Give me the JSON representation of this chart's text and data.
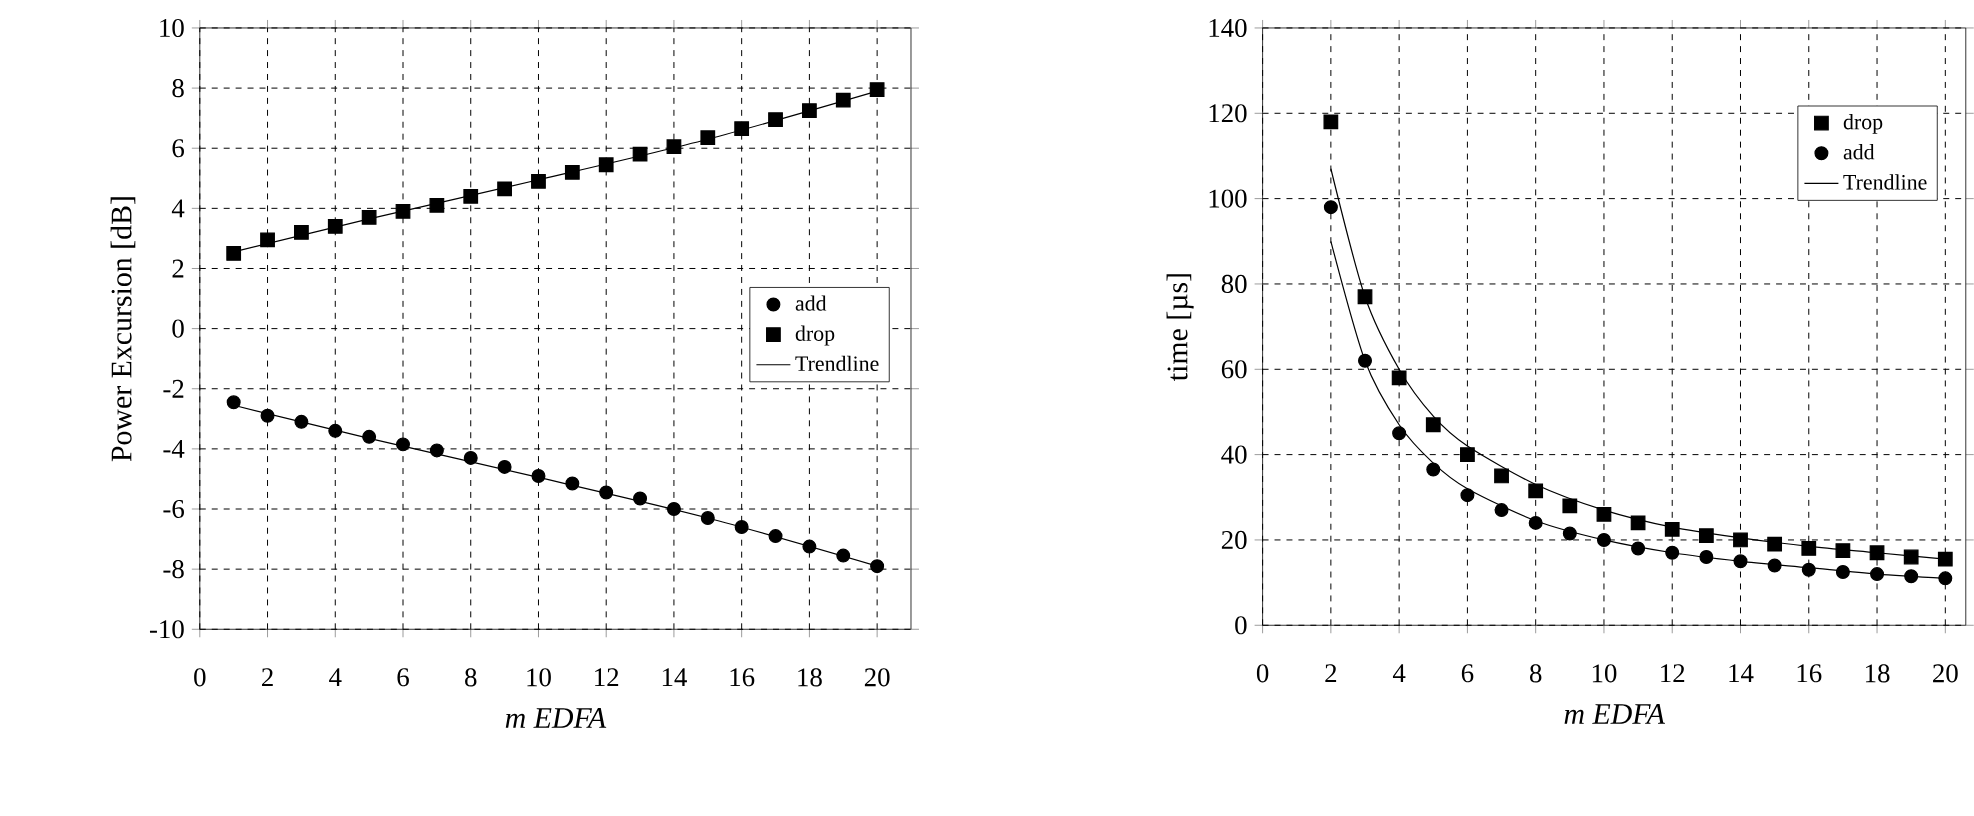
{
  "chart_data": [
    {
      "type": "scatter",
      "xlabel": "m EDFA",
      "ylabel": "Power Excursion [dB]",
      "xlim": [
        0,
        21
      ],
      "ylim": [
        -10,
        10
      ],
      "xticks": [
        0,
        2,
        4,
        6,
        8,
        10,
        12,
        14,
        16,
        18,
        20
      ],
      "yticks": [
        -10,
        -8,
        -6,
        -4,
        -2,
        0,
        2,
        4,
        6,
        8,
        10
      ],
      "grid": true,
      "legend": "right",
      "series": [
        {
          "name": "add",
          "marker": "circle",
          "color": "#000000",
          "x": [
            1,
            2,
            3,
            4,
            5,
            6,
            7,
            8,
            9,
            10,
            11,
            12,
            13,
            14,
            15,
            16,
            17,
            18,
            19,
            20
          ],
          "values": [
            -2.45,
            -2.9,
            -3.1,
            -3.4,
            -3.6,
            -3.85,
            -4.05,
            -4.3,
            -4.6,
            -4.9,
            -5.15,
            -5.45,
            -5.65,
            -6.0,
            -6.3,
            -6.6,
            -6.9,
            -7.25,
            -7.55,
            -7.9
          ]
        },
        {
          "name": "drop",
          "marker": "square",
          "color": "#000000",
          "x": [
            1,
            2,
            3,
            4,
            5,
            6,
            7,
            8,
            9,
            10,
            11,
            12,
            13,
            14,
            15,
            16,
            17,
            18,
            19,
            20
          ],
          "values": [
            2.5,
            2.95,
            3.2,
            3.4,
            3.7,
            3.9,
            4.1,
            4.4,
            4.65,
            4.9,
            5.2,
            5.45,
            5.8,
            6.05,
            6.35,
            6.65,
            6.95,
            7.25,
            7.6,
            7.95
          ]
        },
        {
          "name": "Trendline",
          "type": "line",
          "marker": "none",
          "color": "#000000",
          "x": [
            1,
            5,
            10,
            15,
            20
          ],
          "values": [
            2.55,
            3.65,
            4.95,
            6.3,
            7.9
          ]
        },
        {
          "type": "line",
          "marker": "none",
          "color": "#000000",
          "x": [
            1,
            5,
            10,
            15,
            20
          ],
          "values": [
            -2.55,
            -3.65,
            -4.95,
            -6.3,
            -7.9
          ]
        }
      ]
    },
    {
      "type": "scatter",
      "xlabel": "m EDFA",
      "ylabel": "time [µs]",
      "xlim": [
        0,
        20.6
      ],
      "ylim": [
        0,
        140
      ],
      "xticks": [
        0,
        2,
        4,
        6,
        8,
        10,
        12,
        14,
        16,
        18,
        20
      ],
      "yticks": [
        0,
        20,
        40,
        60,
        80,
        100,
        120,
        140
      ],
      "grid": true,
      "legend": "top right",
      "series": [
        {
          "name": "drop",
          "marker": "square",
          "color": "#000000",
          "x": [
            2,
            3,
            4,
            5,
            6,
            7,
            8,
            9,
            10,
            11,
            12,
            13,
            14,
            15,
            16,
            17,
            18,
            19,
            20
          ],
          "values": [
            118,
            77,
            58,
            47,
            40,
            35,
            31.5,
            28,
            26,
            24,
            22.5,
            21,
            20,
            19,
            18,
            17.5,
            17,
            16,
            15.5
          ]
        },
        {
          "name": "add",
          "marker": "circle",
          "color": "#000000",
          "x": [
            2,
            3,
            4,
            5,
            6,
            7,
            8,
            9,
            10,
            11,
            12,
            13,
            14,
            15,
            16,
            17,
            18,
            19,
            20
          ],
          "values": [
            98,
            62,
            45,
            36.5,
            30.5,
            27,
            24,
            21.5,
            20,
            18,
            17,
            16,
            15,
            14,
            13,
            12.5,
            12,
            11.5,
            11
          ]
        },
        {
          "name": "Trendline",
          "type": "line",
          "marker": "none",
          "color": "#000000",
          "x": [
            2,
            3,
            4,
            5,
            6,
            8,
            10,
            12,
            14,
            16,
            18,
            20
          ],
          "values": [
            107,
            77,
            60,
            49,
            42,
            33,
            27,
            23,
            20.5,
            18.5,
            17,
            15.5
          ]
        },
        {
          "type": "line",
          "marker": "none",
          "color": "#000000",
          "x": [
            2,
            3,
            4,
            5,
            6,
            8,
            10,
            12,
            14,
            16,
            18,
            20
          ],
          "values": [
            90,
            62,
            47,
            38,
            32,
            24.5,
            20,
            17,
            15,
            13.5,
            12,
            11
          ]
        }
      ]
    }
  ]
}
